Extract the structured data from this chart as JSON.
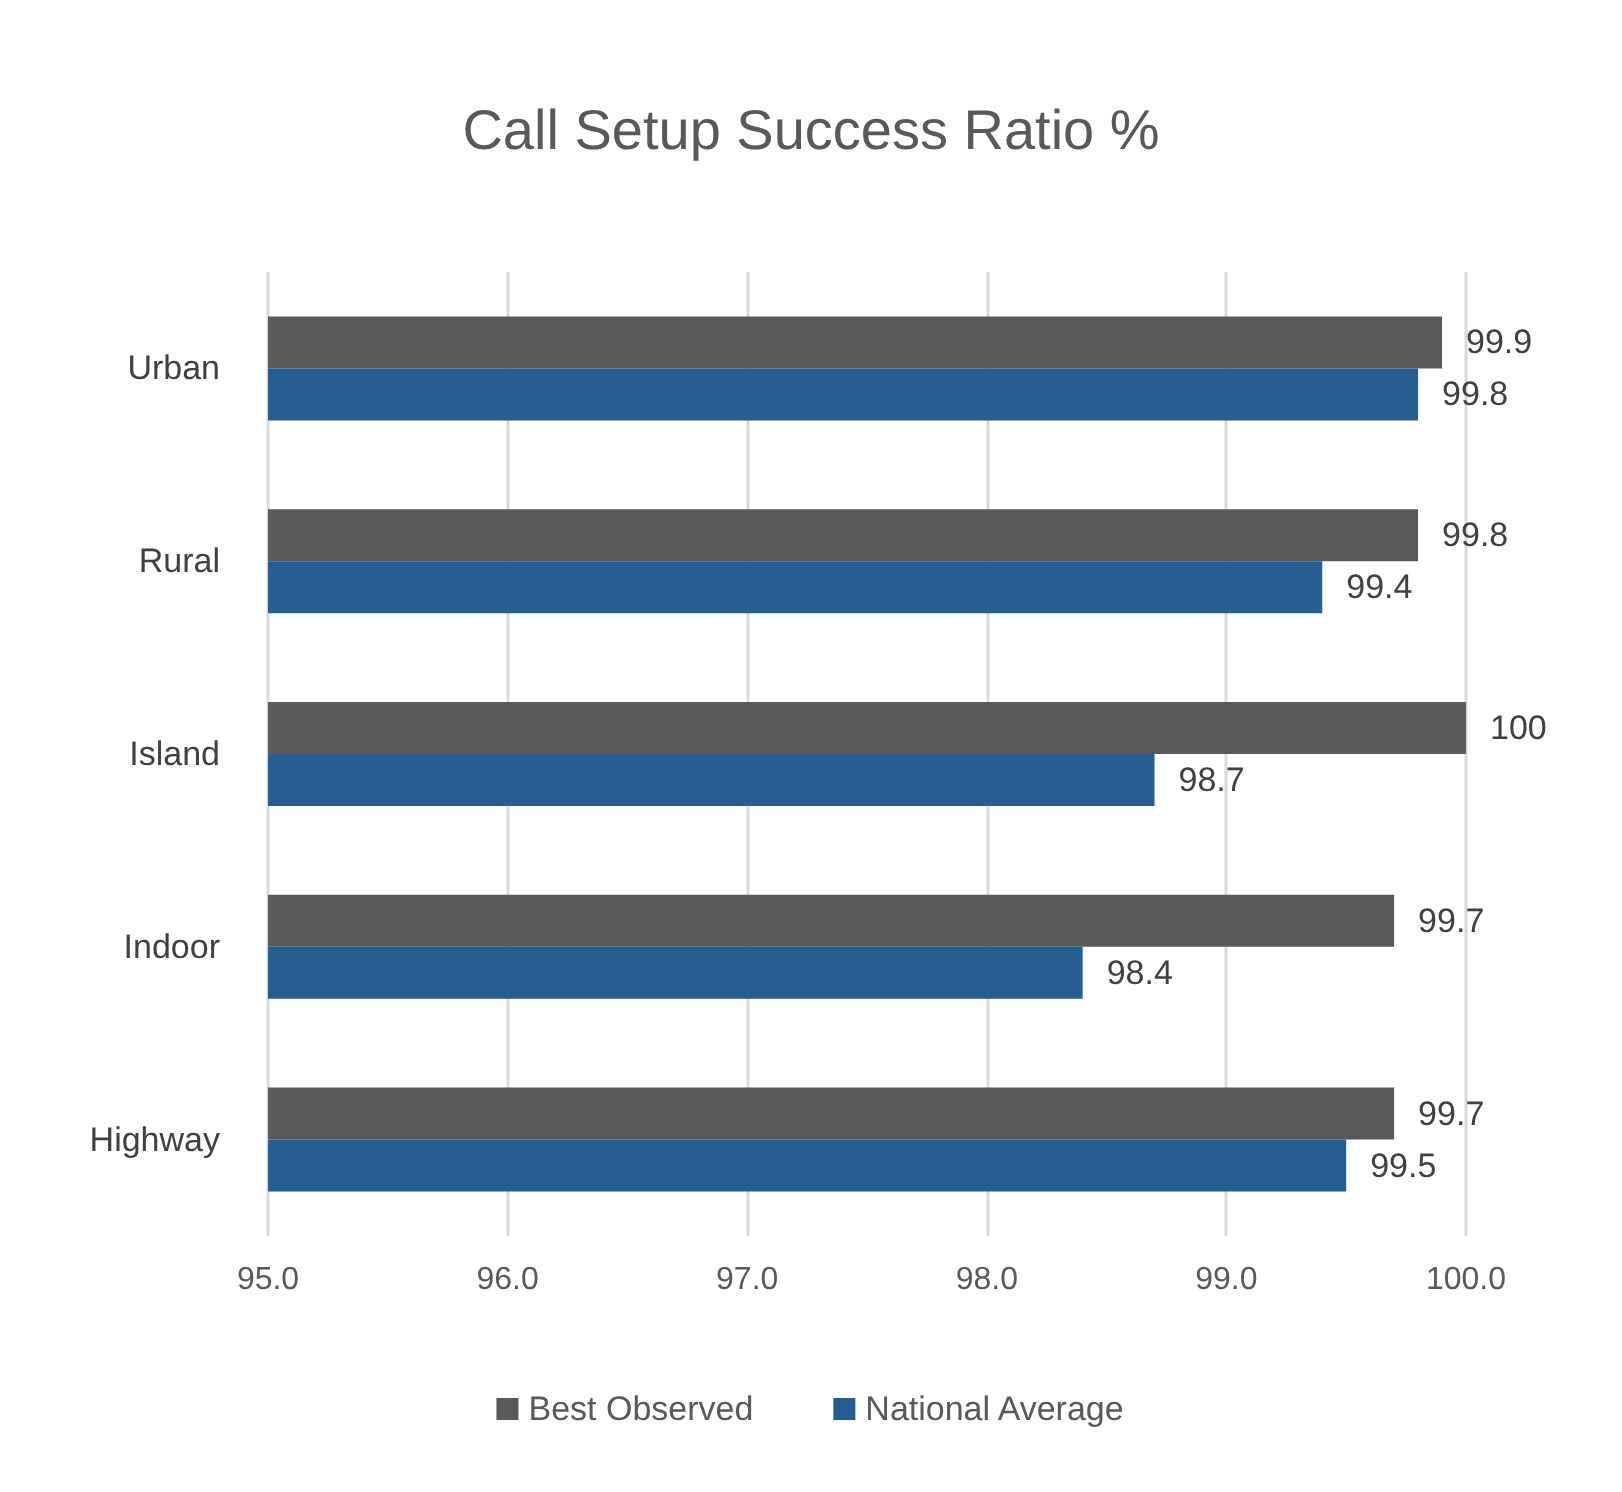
{
  "chart_data": {
    "type": "bar",
    "orientation": "horizontal",
    "title": "Call Setup Success Ratio %",
    "categories": [
      "Urban",
      "Rural",
      "Island",
      "Indoor",
      "Highway"
    ],
    "series": [
      {
        "name": "Best Observed",
        "color": "#595959",
        "values": [
          99.9,
          99.8,
          100,
          99.7,
          99.7
        ]
      },
      {
        "name": "National Average",
        "color": "#255e91",
        "values": [
          99.8,
          99.4,
          98.7,
          98.4,
          99.5
        ]
      }
    ],
    "xlim": [
      95,
      100
    ],
    "xticks": [
      {
        "value": 95,
        "label": "95.0"
      },
      {
        "value": 96,
        "label": "96.0"
      },
      {
        "value": 97,
        "label": "97.0"
      },
      {
        "value": 98,
        "label": "98.0"
      },
      {
        "value": 99,
        "label": "99.0"
      },
      {
        "value": 100,
        "label": "100.0"
      }
    ],
    "grid": "x",
    "legend": "bottom",
    "data_labels": true
  }
}
